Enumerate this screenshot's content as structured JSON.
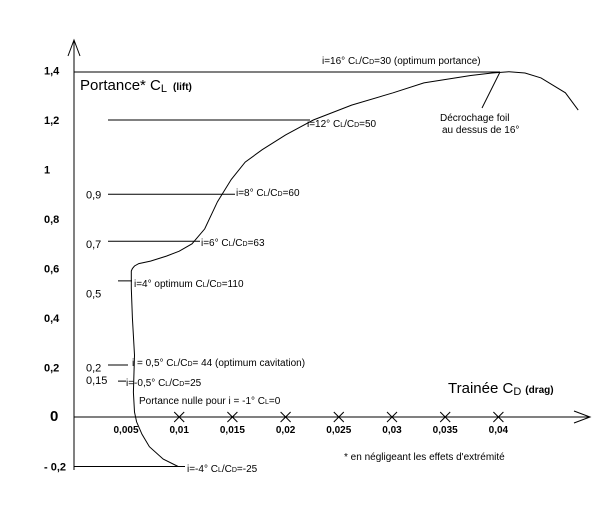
{
  "chart_data": {
    "type": "line",
    "title": "",
    "xlabel": "Trainée CD (drag)",
    "ylabel": "Portance* CL (lift)",
    "y_title": {
      "main": "Portance* C",
      "sub": "L",
      "paren": "(lift)"
    },
    "x_title": {
      "main": "Trainée C",
      "sub": "D",
      "paren": "(drag)"
    },
    "x_ticks": [
      "0,005",
      "0,01",
      "0,015",
      "0,02",
      "0,025",
      "0,03",
      "0,035",
      "0,04"
    ],
    "x_tick_values": [
      0.005,
      0.01,
      0.015,
      0.02,
      0.025,
      0.03,
      0.035,
      0.04
    ],
    "y_ticks": [
      "1,4",
      "1,2",
      "1",
      "0,8",
      "0,6",
      "0,4",
      "0,2",
      "0",
      "- 0,2"
    ],
    "y_tick_values": [
      1.4,
      1.2,
      1.0,
      0.8,
      0.6,
      0.4,
      0.2,
      0.0,
      -0.2
    ],
    "inner_y_labels": [
      "0,9",
      "0,7",
      "0,5",
      "0,2",
      "0,15"
    ],
    "inner_y_values": [
      0.9,
      0.7,
      0.5,
      0.2,
      0.15
    ],
    "xlim": [
      0.0033,
      0.0497
    ],
    "ylim": [
      -0.2,
      1.4
    ],
    "grid": false,
    "series": [
      {
        "x": [
          0.0099,
          0.0085,
          0.0072,
          0.0065,
          0.006,
          0.0058,
          0.0057,
          0.0058,
          0.0056,
          0.0055,
          0.0055,
          0.0055,
          0.0056,
          0.0058,
          0.0062,
          0.0073,
          0.0088,
          0.01,
          0.0112,
          0.0124,
          0.0136,
          0.0149,
          0.0162,
          0.0178,
          0.02,
          0.0226,
          0.0262,
          0.0301,
          0.033,
          0.0374,
          0.0394,
          0.041,
          0.0425,
          0.044,
          0.0463,
          0.0475
        ],
        "y": [
          -0.2,
          -0.17,
          -0.12,
          -0.07,
          -0.02,
          0.02,
          0.1,
          0.25,
          0.4,
          0.52,
          0.56,
          0.59,
          0.6,
          0.61,
          0.62,
          0.63,
          0.65,
          0.67,
          0.7,
          0.76,
          0.87,
          0.96,
          1.03,
          1.08,
          1.14,
          1.2,
          1.26,
          1.31,
          1.35,
          1.38,
          1.39,
          1.395,
          1.39,
          1.37,
          1.31,
          1.24
        ]
      }
    ],
    "annotations": [
      {
        "text": "i=16° C",
        "sub": "L",
        "mid": "/C",
        "sub2": "D",
        "after": "=30 (optimum portance)"
      },
      {
        "text": "i=12° C",
        "sub": "L",
        "mid": "/C",
        "sub2": "D",
        "after": "=50"
      },
      {
        "text": "i=8° C",
        "sub": "L",
        "mid": "/C",
        "sub2": "D",
        "after": "=60"
      },
      {
        "text": "i=6° C",
        "sub": "L",
        "mid": "/C",
        "sub2": "D",
        "after": "=63"
      },
      {
        "text": "i=4° optimum C",
        "sub": "L",
        "mid": "/C",
        "sub2": "D",
        "after": "=110"
      },
      {
        "text": "i = 0,5° C",
        "sub": "L",
        "mid": "/C",
        "sub2": "D",
        "after": "= 44 (optimum cavitation)"
      },
      {
        "text": "i=-0,5° C",
        "sub": "L",
        "mid": "/C",
        "sub2": "D",
        "after": "=25"
      },
      {
        "text": "Portance nulle pour i = -1° C",
        "sub": "L",
        "mid": "",
        "sub2": "",
        "after": "=0"
      },
      {
        "text": "i=-4° C",
        "sub": "L",
        "mid": "/C",
        "sub2": "D",
        "after": "=-25"
      }
    ],
    "stall_note": [
      "Décrochage foil",
      "au dessus de 16°"
    ],
    "footnote": "* en négligeant les effets d'extrémité"
  }
}
